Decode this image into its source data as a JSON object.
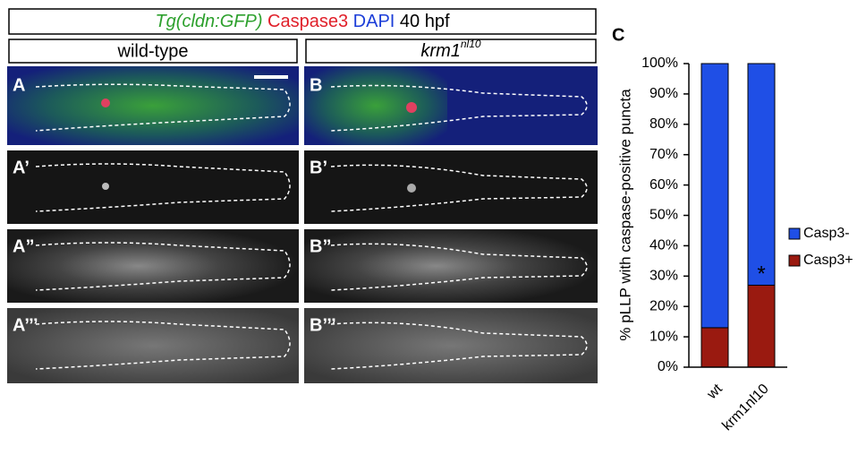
{
  "header": {
    "transgene": "Tg(cldn:GFP)",
    "stain1": "Caspase3",
    "stain2": "DAPI",
    "stage": "40 hpf"
  },
  "columns": [
    {
      "name": "wild-type"
    },
    {
      "name": "krm1",
      "superscript": "nl10"
    }
  ],
  "panels": [
    [
      "A",
      "A’",
      "A”",
      "A’’’"
    ],
    [
      "B",
      "B’",
      "B”",
      "B’’’"
    ]
  ],
  "chart_data": {
    "type": "stacked-bar",
    "panel_label": "C",
    "y_label": "% pLLP with caspase-positive puncta",
    "categories": [
      "wt",
      "krm1nl10"
    ],
    "series": [
      {
        "name": "Casp3+",
        "color": "#9a1a10",
        "values": [
          13,
          27
        ]
      },
      {
        "name": "Casp3-",
        "color": "#1f4fe6",
        "values": [
          87,
          73
        ]
      }
    ],
    "ylim": [
      0,
      100
    ],
    "yticks": [
      {
        "value": 0,
        "label": "0%"
      },
      {
        "value": 10,
        "label": "10%"
      },
      {
        "value": 20,
        "label": "20%"
      },
      {
        "value": 30,
        "label": "30%"
      },
      {
        "value": 40,
        "label": "40%"
      },
      {
        "value": 50,
        "label": "50%"
      },
      {
        "value": 60,
        "label": "60%"
      },
      {
        "value": 70,
        "label": "70%"
      },
      {
        "value": 80,
        "label": "80%"
      },
      {
        "value": 90,
        "label": "90%"
      },
      {
        "value": 100,
        "label": "100%"
      }
    ],
    "annotations": [
      "*"
    ]
  }
}
